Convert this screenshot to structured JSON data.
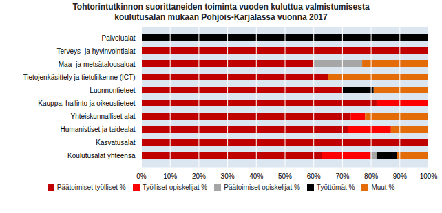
{
  "chart_data": {
    "type": "bar",
    "orientation": "horizontal",
    "stacked": true,
    "title": "Tohtorintutkinnon suorittaneiden toiminta vuoden kuluttua valmistumisesta\nkoulutusalan mukaan Pohjois-Karjalassa vuonna 2017",
    "categories": [
      "Palvelualat",
      "Terveys- ja hyvinvointialat",
      "Maa- ja metsätalousaloat",
      "Tietojenkäsittely ja tietoliikenne (ICT)",
      "Luonnontieteet",
      "Kauppa, hallinto ja oikeustieteet",
      "Yhteiskunnalliset alat",
      "Humanistiset ja taidealat",
      "Kasvatusalat",
      "Koulutusalat yhteensä"
    ],
    "series": [
      {
        "name": "Päätoimiset työlliset %",
        "color": "#c00000",
        "values": [
          0,
          100,
          60,
          65,
          70,
          82,
          73,
          72,
          100,
          63
        ]
      },
      {
        "name": "Työlliset opiskelijat %",
        "color": "#ff0000",
        "values": [
          0,
          0,
          0,
          0,
          0,
          18,
          5,
          15,
          0,
          17
        ]
      },
      {
        "name": "Päätoimiset opiskelijat %",
        "color": "#a6a6a6",
        "values": [
          0,
          0,
          17,
          0,
          0,
          0,
          0,
          0,
          0,
          2
        ]
      },
      {
        "name": "Työttömät %",
        "color": "#000000",
        "values": [
          100,
          0,
          0,
          0,
          11,
          0,
          0,
          0,
          0,
          7
        ]
      },
      {
        "name": "Muut %",
        "color": "#e36c09",
        "values": [
          0,
          0,
          23,
          35,
          19,
          0,
          22,
          13,
          0,
          11
        ]
      }
    ],
    "xlim": [
      0,
      100
    ],
    "xticks": [
      {
        "value": 0,
        "label": "0%"
      },
      {
        "value": 10,
        "label": "10%"
      },
      {
        "value": 20,
        "label": "20%"
      },
      {
        "value": 30,
        "label": "30%"
      },
      {
        "value": 40,
        "label": "40%"
      },
      {
        "value": 50,
        "label": "50%"
      },
      {
        "value": 60,
        "label": "60%"
      },
      {
        "value": 70,
        "label": "70%"
      },
      {
        "value": 80,
        "label": "80%"
      },
      {
        "value": 90,
        "label": "90%"
      },
      {
        "value": 100,
        "label": "100%"
      }
    ],
    "grid": true,
    "legend": "bottom"
  }
}
